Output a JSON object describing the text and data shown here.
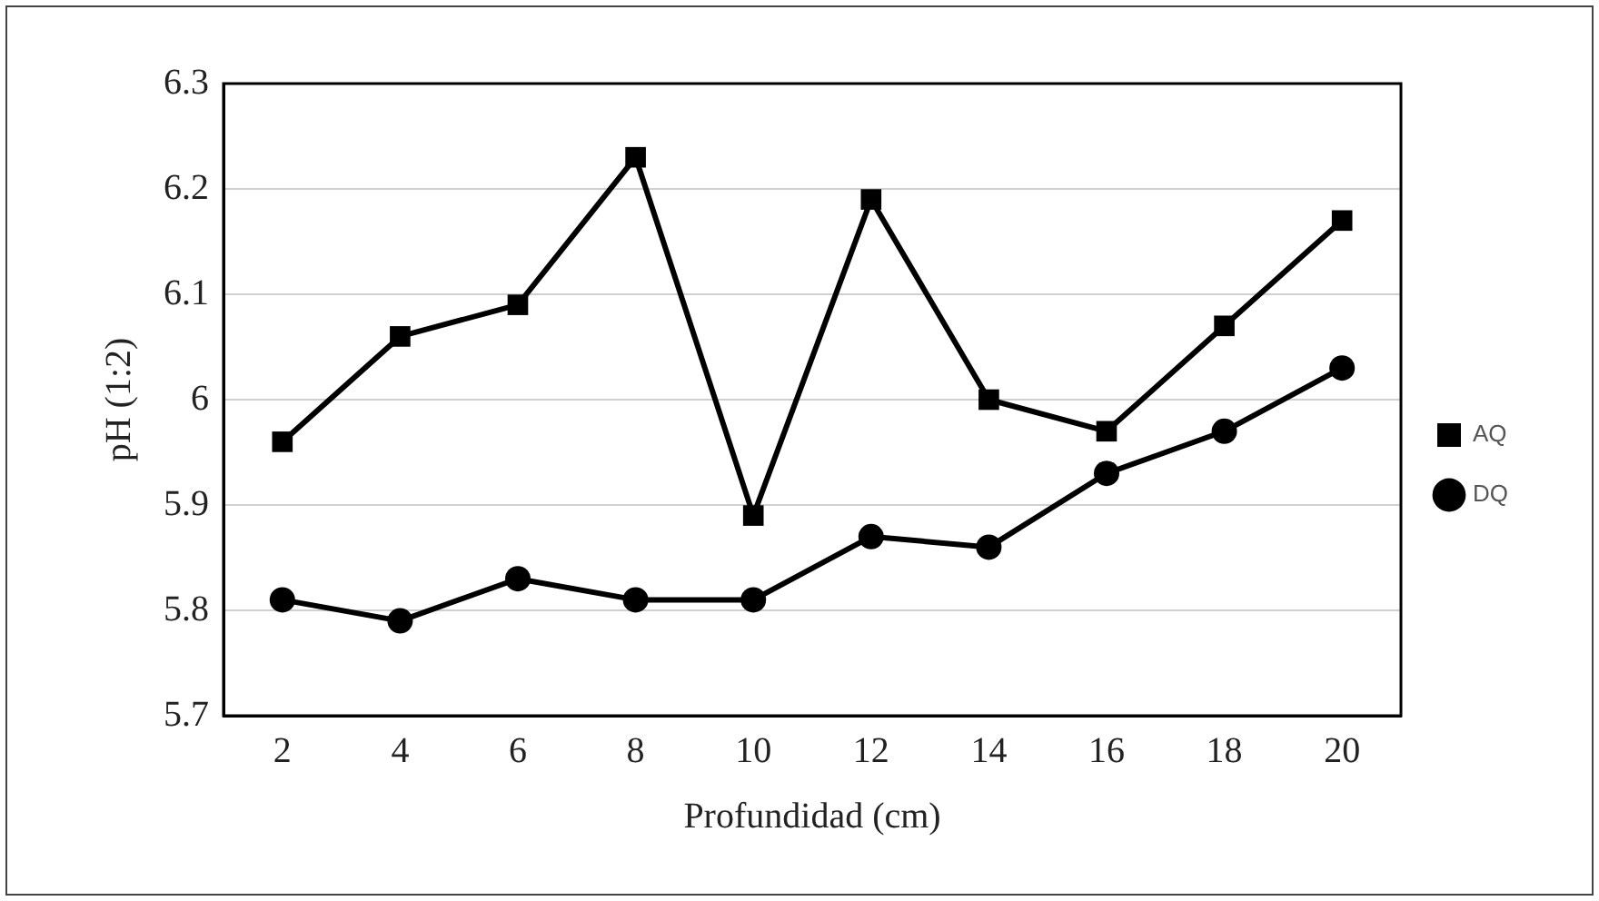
{
  "chart_data": {
    "type": "line",
    "xlabel": "Profundidad (cm)",
    "ylabel": "pH (1:2)",
    "categories": [
      "2",
      "4",
      "6",
      "8",
      "10",
      "12",
      "14",
      "16",
      "18",
      "20"
    ],
    "series": [
      {
        "name": "AQ",
        "color": "#000000",
        "marker": "square",
        "values": [
          5.96,
          6.06,
          6.09,
          6.23,
          5.89,
          6.19,
          6.0,
          5.97,
          6.07,
          6.17
        ]
      },
      {
        "name": "DQ",
        "color": "#000000",
        "marker": "circle",
        "values": [
          5.81,
          5.79,
          5.83,
          5.81,
          5.81,
          5.87,
          5.86,
          5.93,
          5.97,
          6.03
        ]
      }
    ],
    "ylim": [
      5.7,
      6.3
    ],
    "yticks": [
      5.7,
      5.8,
      5.9,
      6,
      6.1,
      6.2,
      6.3
    ],
    "grid": "y",
    "legend": "right",
    "line_style": "solid"
  }
}
